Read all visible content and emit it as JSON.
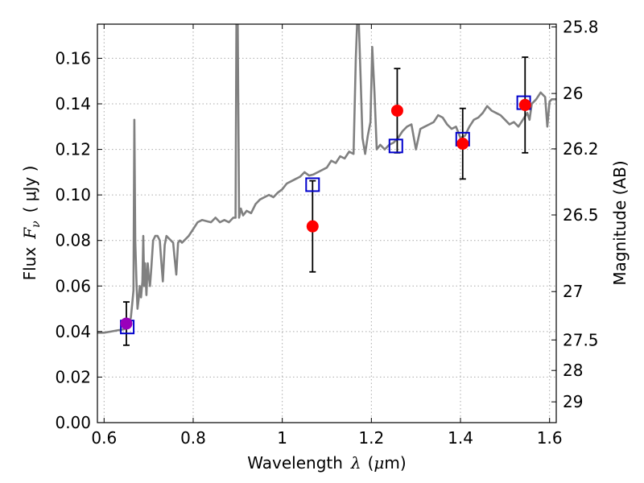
{
  "chart_data": {
    "type": "scatter",
    "xlabel_prefix": "Wavelength",
    "xlabel_symbol": "λ",
    "xlabel_unit_open": "(",
    "xlabel_unit_mu": "μ",
    "xlabel_unit_rest": "m)",
    "ylabel_prefix": "Flux",
    "ylabel_symbol": "F",
    "ylabel_sub": "ν",
    "ylabel_unit": "( μJy )",
    "y2label": "Magnitude (AB)",
    "xlim": [
      0.585,
      1.615
    ],
    "ylim": [
      0.0,
      0.175
    ],
    "grid": true,
    "x_ticks": [
      {
        "v": 0.6,
        "label": "0.6"
      },
      {
        "v": 0.8,
        "label": "0.8"
      },
      {
        "v": 1.0,
        "label": "1"
      },
      {
        "v": 1.2,
        "label": "1.2"
      },
      {
        "v": 1.4,
        "label": "1.4"
      },
      {
        "v": 1.6,
        "label": "1.6"
      }
    ],
    "y_ticks": [
      {
        "v": 0.0,
        "label": "0.00"
      },
      {
        "v": 0.02,
        "label": "0.02"
      },
      {
        "v": 0.04,
        "label": "0.04"
      },
      {
        "v": 0.06,
        "label": "0.06"
      },
      {
        "v": 0.08,
        "label": "0.08"
      },
      {
        "v": 0.1,
        "label": "0.10"
      },
      {
        "v": 0.12,
        "label": "0.12"
      },
      {
        "v": 0.14,
        "label": "0.14"
      },
      {
        "v": 0.16,
        "label": "0.16"
      }
    ],
    "mag_ticks": [
      {
        "label": "25.8",
        "v": 25.8
      },
      {
        "label": "26",
        "v": 26.0
      },
      {
        "label": "26.2",
        "v": 26.2
      },
      {
        "label": "26.5",
        "v": 26.5
      },
      {
        "label": "27",
        "v": 27.0
      },
      {
        "label": "27.5",
        "v": 27.5
      },
      {
        "label": "28",
        "v": 28.0
      },
      {
        "label": "29",
        "v": 29.0
      }
    ],
    "observed": [
      {
        "x": 0.65,
        "y": 0.0435,
        "err": 0.0095
      },
      {
        "x": 1.068,
        "y": 0.0862,
        "err": 0.02
      },
      {
        "x": 1.258,
        "y": 0.137,
        "err": 0.0185
      },
      {
        "x": 1.405,
        "y": 0.1225,
        "err": 0.0155
      },
      {
        "x": 1.545,
        "y": 0.1395,
        "err": 0.021
      }
    ],
    "model_points": [
      {
        "x": 0.652,
        "y": 0.042
      },
      {
        "x": 1.068,
        "y": 0.1045
      },
      {
        "x": 1.255,
        "y": 0.1215
      },
      {
        "x": 1.405,
        "y": 0.1245
      },
      {
        "x": 1.542,
        "y": 0.1405
      }
    ],
    "spectrum": [
      [
        0.585,
        0.0395
      ],
      [
        0.6,
        0.0395
      ],
      [
        0.615,
        0.04
      ],
      [
        0.63,
        0.0405
      ],
      [
        0.645,
        0.041
      ],
      [
        0.655,
        0.043
      ],
      [
        0.66,
        0.046
      ],
      [
        0.663,
        0.052
      ],
      [
        0.666,
        0.058
      ],
      [
        0.668,
        0.133
      ],
      [
        0.67,
        0.08
      ],
      [
        0.673,
        0.06
      ],
      [
        0.675,
        0.05
      ],
      [
        0.678,
        0.055
      ],
      [
        0.68,
        0.06
      ],
      [
        0.683,
        0.055
      ],
      [
        0.686,
        0.062
      ],
      [
        0.688,
        0.082
      ],
      [
        0.69,
        0.06
      ],
      [
        0.692,
        0.07
      ],
      [
        0.695,
        0.056
      ],
      [
        0.698,
        0.07
      ],
      [
        0.7,
        0.065
      ],
      [
        0.703,
        0.06
      ],
      [
        0.706,
        0.068
      ],
      [
        0.71,
        0.08
      ],
      [
        0.715,
        0.082
      ],
      [
        0.72,
        0.082
      ],
      [
        0.725,
        0.08
      ],
      [
        0.728,
        0.072
      ],
      [
        0.732,
        0.062
      ],
      [
        0.736,
        0.078
      ],
      [
        0.74,
        0.082
      ],
      [
        0.745,
        0.081
      ],
      [
        0.75,
        0.08
      ],
      [
        0.755,
        0.079
      ],
      [
        0.758,
        0.073
      ],
      [
        0.762,
        0.065
      ],
      [
        0.766,
        0.079
      ],
      [
        0.77,
        0.08
      ],
      [
        0.775,
        0.079
      ],
      [
        0.78,
        0.08
      ],
      [
        0.79,
        0.082
      ],
      [
        0.8,
        0.085
      ],
      [
        0.81,
        0.088
      ],
      [
        0.82,
        0.089
      ],
      [
        0.83,
        0.0885
      ],
      [
        0.84,
        0.088
      ],
      [
        0.85,
        0.09
      ],
      [
        0.86,
        0.088
      ],
      [
        0.87,
        0.089
      ],
      [
        0.88,
        0.088
      ],
      [
        0.89,
        0.09
      ],
      [
        0.895,
        0.09
      ],
      [
        0.897,
        0.175
      ],
      [
        0.9,
        0.175
      ],
      [
        0.903,
        0.09
      ],
      [
        0.907,
        0.094
      ],
      [
        0.912,
        0.091
      ],
      [
        0.92,
        0.093
      ],
      [
        0.93,
        0.092
      ],
      [
        0.94,
        0.096
      ],
      [
        0.95,
        0.098
      ],
      [
        0.96,
        0.099
      ],
      [
        0.97,
        0.1
      ],
      [
        0.98,
        0.099
      ],
      [
        0.99,
        0.101
      ],
      [
        1.0,
        0.1025
      ],
      [
        1.01,
        0.105
      ],
      [
        1.02,
        0.106
      ],
      [
        1.03,
        0.107
      ],
      [
        1.04,
        0.108
      ],
      [
        1.05,
        0.11
      ],
      [
        1.06,
        0.1085
      ],
      [
        1.07,
        0.109
      ],
      [
        1.08,
        0.11
      ],
      [
        1.09,
        0.111
      ],
      [
        1.1,
        0.112
      ],
      [
        1.11,
        0.115
      ],
      [
        1.12,
        0.114
      ],
      [
        1.13,
        0.117
      ],
      [
        1.14,
        0.116
      ],
      [
        1.15,
        0.119
      ],
      [
        1.16,
        0.118
      ],
      [
        1.165,
        0.16
      ],
      [
        1.168,
        0.175
      ],
      [
        1.172,
        0.175
      ],
      [
        1.176,
        0.15
      ],
      [
        1.18,
        0.125
      ],
      [
        1.186,
        0.118
      ],
      [
        1.192,
        0.126
      ],
      [
        1.198,
        0.132
      ],
      [
        1.202,
        0.165
      ],
      [
        1.207,
        0.145
      ],
      [
        1.212,
        0.12
      ],
      [
        1.22,
        0.122
      ],
      [
        1.23,
        0.12
      ],
      [
        1.24,
        0.122
      ],
      [
        1.25,
        0.123
      ],
      [
        1.26,
        0.125
      ],
      [
        1.27,
        0.128
      ],
      [
        1.28,
        0.13
      ],
      [
        1.29,
        0.131
      ],
      [
        1.3,
        0.12
      ],
      [
        1.31,
        0.129
      ],
      [
        1.32,
        0.13
      ],
      [
        1.33,
        0.131
      ],
      [
        1.34,
        0.132
      ],
      [
        1.35,
        0.135
      ],
      [
        1.36,
        0.134
      ],
      [
        1.37,
        0.131
      ],
      [
        1.38,
        0.129
      ],
      [
        1.39,
        0.13
      ],
      [
        1.4,
        0.125
      ],
      [
        1.41,
        0.126
      ],
      [
        1.42,
        0.13
      ],
      [
        1.43,
        0.133
      ],
      [
        1.44,
        0.134
      ],
      [
        1.45,
        0.136
      ],
      [
        1.46,
        0.139
      ],
      [
        1.47,
        0.137
      ],
      [
        1.48,
        0.136
      ],
      [
        1.49,
        0.135
      ],
      [
        1.5,
        0.133
      ],
      [
        1.51,
        0.131
      ],
      [
        1.52,
        0.132
      ],
      [
        1.53,
        0.13
      ],
      [
        1.54,
        0.133
      ],
      [
        1.55,
        0.136
      ],
      [
        1.555,
        0.133
      ],
      [
        1.56,
        0.14
      ],
      [
        1.57,
        0.142
      ],
      [
        1.58,
        0.145
      ],
      [
        1.59,
        0.143
      ],
      [
        1.595,
        0.13
      ],
      [
        1.6,
        0.141
      ],
      [
        1.605,
        0.142
      ],
      [
        1.615,
        0.142
      ]
    ],
    "colors": {
      "spectrum": "#808080",
      "observed": "#ff0000",
      "model": "#0000cc",
      "errorbar": "#000000",
      "first_point_overlap": "#9900bb",
      "grid": "#aaaaaa"
    }
  }
}
